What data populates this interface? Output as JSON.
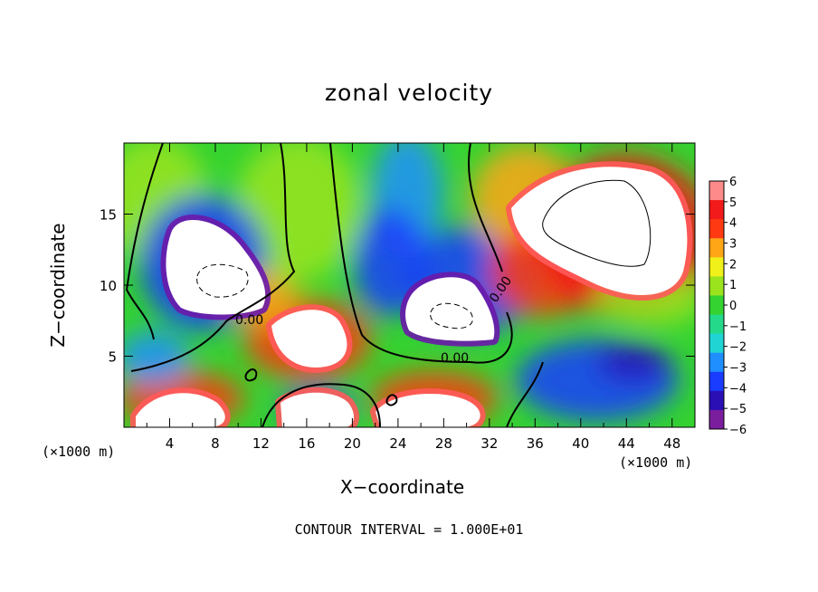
{
  "chart_data": {
    "type": "heatmap",
    "title": "zonal velocity",
    "xlabel": "X−coordinate",
    "ylabel": "Z−coordinate",
    "x_unit_left": "(×1000 m)",
    "x_unit_right": "(×1000 m)",
    "footer": "CONTOUR INTERVAL = 1.000E+01",
    "xlim": [
      0,
      50
    ],
    "ylim": [
      0,
      20
    ],
    "x_ticks": [
      4,
      8,
      12,
      16,
      20,
      24,
      28,
      32,
      36,
      40,
      44,
      48
    ],
    "y_ticks": [
      5,
      10,
      15
    ],
    "colorbar": {
      "ticks": [
        "6",
        "5",
        "4",
        "3",
        "2",
        "1",
        "0",
        "−1",
        "−2",
        "−3",
        "−4",
        "−5",
        "−6"
      ],
      "min": -6,
      "max": 6,
      "colors": [
        "#7a1e9e",
        "#2a0fb5",
        "#1a3cff",
        "#1f8fff",
        "#21d4d4",
        "#24d98a",
        "#35d331",
        "#9be41d",
        "#f0f01a",
        "#ffa617",
        "#ff3a12",
        "#f21a1a",
        "#ff8a8a"
      ]
    },
    "contour_labels": [
      "0.00",
      "0.00",
      "0.00"
    ],
    "features": [
      {
        "label": "westerly core upper right",
        "x": 44,
        "z": 15,
        "value": 7
      },
      {
        "label": "easterly core left",
        "x": 6,
        "z": 11,
        "value": -7
      },
      {
        "label": "easterly core middle",
        "x": 28,
        "z": 8,
        "value": -7
      },
      {
        "label": "westerly patch",
        "x": 18,
        "z": 6.5,
        "value": 6.5
      },
      {
        "label": "easterly near surface",
        "x": 42,
        "z": 3,
        "value": -5
      }
    ]
  }
}
